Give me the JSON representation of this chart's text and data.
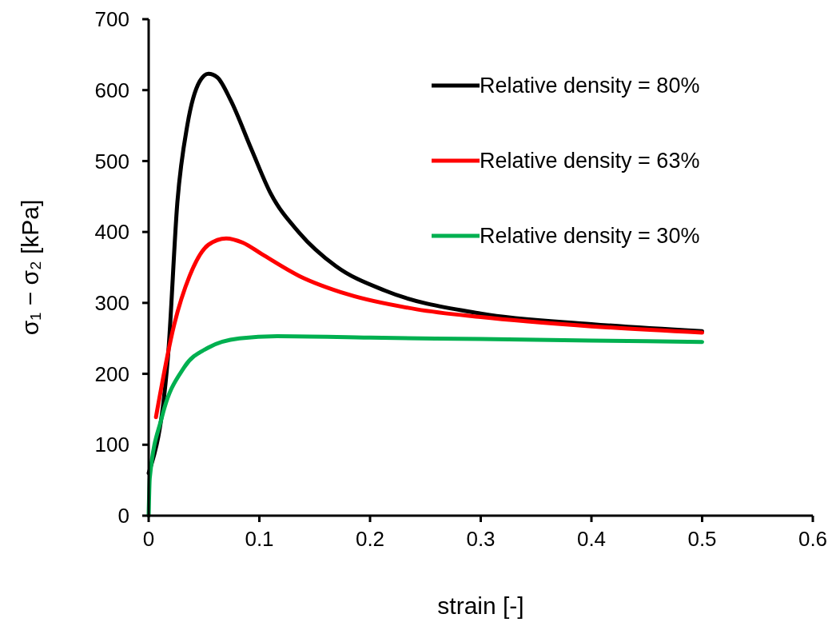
{
  "chart_data": {
    "type": "line",
    "xlabel": "strain [-]",
    "ylabel": "σ₁ − σ₂  [kPa]",
    "xlim": [
      0,
      0.6
    ],
    "xticks": [
      0,
      0.1,
      0.2,
      0.3,
      0.4,
      0.5,
      0.6
    ],
    "ylim": [
      0,
      700
    ],
    "yticks": [
      0,
      100,
      200,
      300,
      400,
      500,
      600,
      700
    ],
    "grid": false,
    "legend": "top right",
    "marker": "none",
    "line_style": "solid",
    "series": [
      {
        "name": "Relative density = 80%",
        "color": "#000000",
        "x": [
          0,
          0.0175,
          0.026,
          0.035,
          0.046,
          0.054,
          0.062,
          0.074,
          0.093,
          0.11,
          0.136,
          0.169,
          0.214,
          0.3,
          0.4,
          0.5
        ],
        "values": [
          60,
          225,
          443,
          551,
          612,
          623,
          618,
          586,
          516,
          455,
          399,
          352,
          317,
          285,
          270,
          260
        ]
      },
      {
        "name": "Relative density = 63%",
        "color": "#ff0000",
        "x": [
          0.0066,
          0.023,
          0.037,
          0.054,
          0.07,
          0.085,
          0.102,
          0.136,
          0.18,
          0.242,
          0.3,
          0.4,
          0.5
        ],
        "values": [
          139,
          269,
          338,
          382,
          391,
          385,
          369,
          338,
          312,
          291,
          280,
          267,
          258
        ]
      },
      {
        "name": "Relative density = 30%",
        "color": "#00b050",
        "x": [
          0,
          0.001,
          0.012,
          0.032,
          0.054,
          0.082,
          0.116,
          0.2,
          0.3,
          0.4,
          0.5
        ],
        "values": [
          0,
          53,
          139,
          209,
          237,
          250,
          253,
          251,
          249,
          247,
          245
        ]
      }
    ]
  }
}
